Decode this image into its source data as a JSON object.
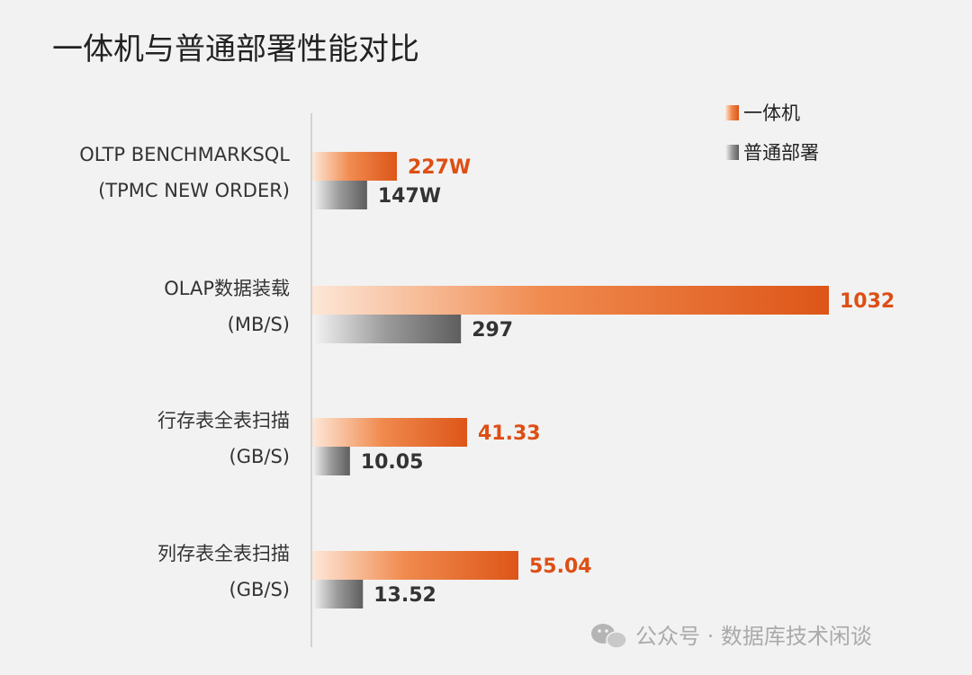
{
  "chart_data": {
    "type": "bar",
    "orientation": "horizontal",
    "title": "一体机与普通部署性能对比",
    "categories": [
      [
        "OLTP BENCHMARKSQL",
        "(TPMC NEW ORDER)"
      ],
      [
        "OLAP数据装载",
        "(MB/S)"
      ],
      [
        "行存表全表扫描",
        "(GB/S)"
      ],
      [
        "列存表全表扫描",
        "(GB/S)"
      ]
    ],
    "series": [
      {
        "name": "一体机",
        "color": "#e05a1e",
        "values": [
          227,
          1032,
          41.33,
          55.04
        ],
        "labels": [
          "227W",
          "1032",
          "41.33",
          "55.04"
        ]
      },
      {
        "name": "普通部署",
        "color": "#666666",
        "values": [
          147,
          297,
          10.05,
          13.52
        ],
        "labels": [
          "147W",
          "297",
          "10.05",
          "13.52"
        ]
      }
    ],
    "legend_position": "top-right",
    "grid": false
  },
  "watermark": {
    "text": "公众号 · 数据库技术闲谈",
    "icon": "wechat-icon"
  }
}
